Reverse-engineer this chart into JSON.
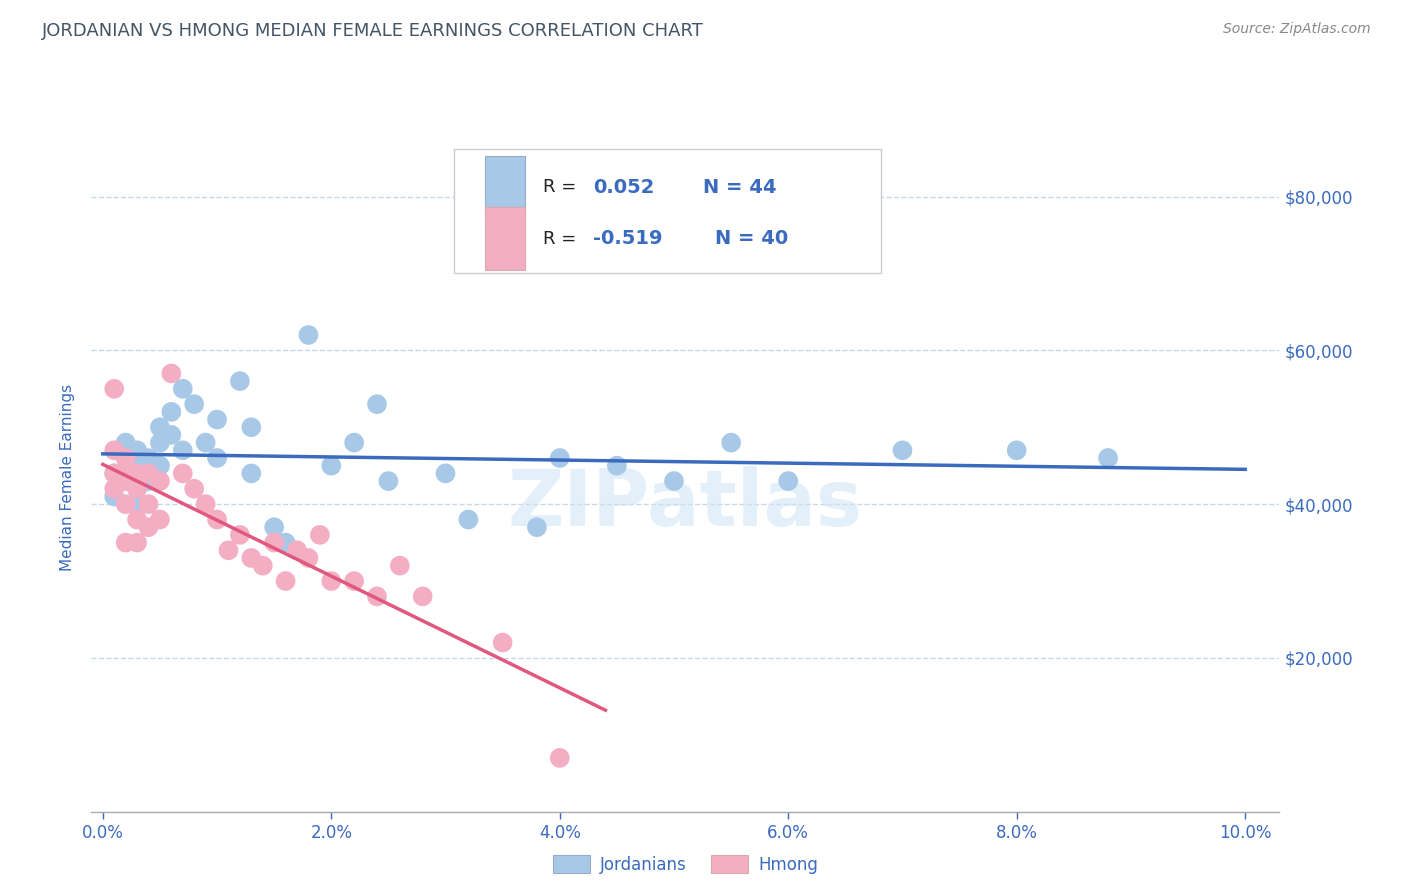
{
  "title": "JORDANIAN VS HMONG MEDIAN FEMALE EARNINGS CORRELATION CHART",
  "source_text": "Source: ZipAtlas.com",
  "ylabel": "Median Female Earnings",
  "watermark": "ZIPatlas",
  "xlim": [
    -0.001,
    0.103
  ],
  "ylim": [
    0,
    87000
  ],
  "yticks": [
    0,
    20000,
    40000,
    60000,
    80000
  ],
  "ytick_labels": [
    "",
    "$20,000",
    "$40,000",
    "$60,000",
    "$80,000"
  ],
  "xtick_labels": [
    "0.0%",
    "2.0%",
    "4.0%",
    "6.0%",
    "8.0%",
    "10.0%"
  ],
  "xticks": [
    0.0,
    0.02,
    0.04,
    0.06,
    0.08,
    0.1
  ],
  "jordanian_color": "#a8c8e8",
  "hmong_color": "#f4aec4",
  "trend_jordanian_color": "#3a6bbf",
  "trend_hmong_color": "#e05880",
  "background_color": "#ffffff",
  "grid_color": "#c8d8e8",
  "title_color": "#445566",
  "axis_label_color": "#3a6bbf",
  "legend_text_color": "#222222",
  "legend_value_color": "#3a6bbf",
  "jordanian_x": [
    0.001,
    0.001,
    0.002,
    0.002,
    0.002,
    0.003,
    0.003,
    0.003,
    0.003,
    0.004,
    0.004,
    0.004,
    0.005,
    0.005,
    0.005,
    0.006,
    0.006,
    0.007,
    0.007,
    0.008,
    0.009,
    0.01,
    0.01,
    0.012,
    0.013,
    0.013,
    0.015,
    0.016,
    0.018,
    0.02,
    0.022,
    0.024,
    0.025,
    0.03,
    0.032,
    0.038,
    0.04,
    0.045,
    0.05,
    0.055,
    0.06,
    0.07,
    0.08,
    0.088
  ],
  "jordanian_y": [
    44000,
    41000,
    46000,
    43000,
    48000,
    42000,
    45000,
    47000,
    40000,
    43000,
    46000,
    44000,
    50000,
    48000,
    45000,
    52000,
    49000,
    47000,
    55000,
    53000,
    48000,
    46000,
    51000,
    56000,
    50000,
    44000,
    37000,
    35000,
    62000,
    45000,
    48000,
    53000,
    43000,
    44000,
    38000,
    37000,
    46000,
    45000,
    43000,
    48000,
    43000,
    47000,
    47000,
    46000
  ],
  "hmong_x": [
    0.001,
    0.001,
    0.001,
    0.001,
    0.002,
    0.002,
    0.002,
    0.002,
    0.002,
    0.003,
    0.003,
    0.003,
    0.003,
    0.003,
    0.004,
    0.004,
    0.004,
    0.005,
    0.005,
    0.006,
    0.007,
    0.008,
    0.009,
    0.01,
    0.011,
    0.012,
    0.013,
    0.014,
    0.015,
    0.016,
    0.017,
    0.018,
    0.019,
    0.02,
    0.022,
    0.024,
    0.026,
    0.028,
    0.035,
    0.04
  ],
  "hmong_y": [
    47000,
    55000,
    44000,
    42000,
    46000,
    43000,
    44000,
    40000,
    35000,
    44000,
    42000,
    43000,
    38000,
    35000,
    44000,
    40000,
    37000,
    43000,
    38000,
    57000,
    44000,
    42000,
    40000,
    38000,
    34000,
    36000,
    33000,
    32000,
    35000,
    30000,
    34000,
    33000,
    36000,
    30000,
    30000,
    28000,
    32000,
    28000,
    22000,
    7000
  ],
  "trend_j_x0": 0.0,
  "trend_j_x1": 0.1,
  "trend_h_x0": 0.0,
  "trend_h_x1": 0.044
}
